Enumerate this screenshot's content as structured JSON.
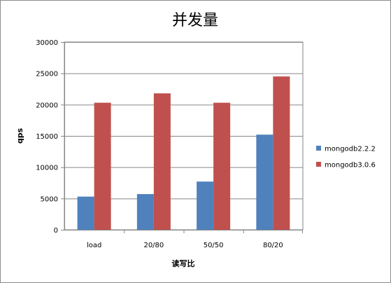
{
  "chart_data": {
    "type": "bar",
    "title": "并发量",
    "xlabel": "读写比",
    "ylabel": "qps",
    "categories": [
      "load",
      "20/80",
      "50/50",
      "80/20"
    ],
    "ylim": [
      0,
      30000
    ],
    "yticks": [
      0,
      5000,
      10000,
      15000,
      20000,
      25000,
      30000
    ],
    "grid": true,
    "legend": "right",
    "series": [
      {
        "name": "mongodb2.2.2",
        "color": "#4f81bd",
        "values": [
          5300,
          5700,
          7700,
          15200
        ]
      },
      {
        "name": "mongodb3.0.6",
        "color": "#c0504d",
        "values": [
          20300,
          21800,
          20300,
          24500
        ]
      }
    ]
  }
}
